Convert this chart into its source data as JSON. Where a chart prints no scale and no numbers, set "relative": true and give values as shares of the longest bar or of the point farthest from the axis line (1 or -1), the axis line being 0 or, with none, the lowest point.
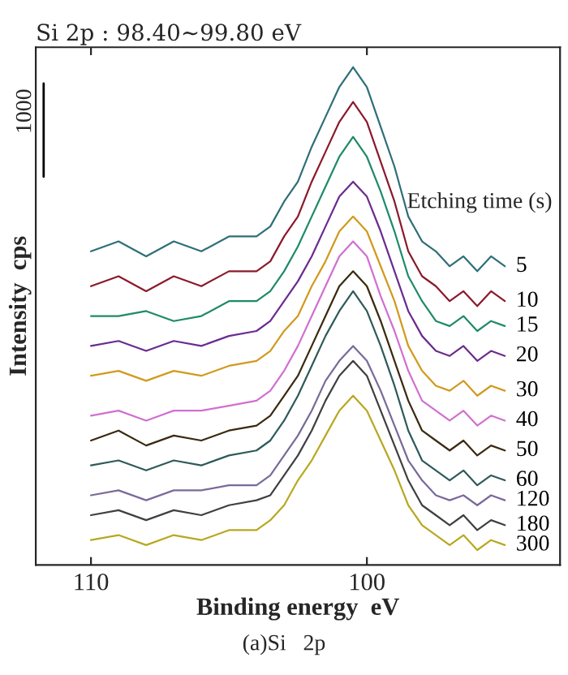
{
  "chart_data": {
    "type": "line",
    "relative": true,
    "title": "Si 2p : 98.40∼99.80 eV",
    "xlabel": "Binding energy  eV",
    "ylabel": "Intensity  cps",
    "legend_title": "Etching time (s)",
    "annotations": [
      "1000",
      "(a)Si   2p"
    ],
    "x": [
      110,
      109,
      108,
      107,
      106,
      105,
      104,
      103.5,
      103,
      102.5,
      102,
      101.5,
      101,
      100.5,
      100,
      99.5,
      99,
      98.5,
      98,
      97.5,
      97,
      96.5,
      96,
      95.5,
      95
    ],
    "xlim": [
      112,
      93
    ],
    "xticks": [
      110,
      100
    ],
    "tick_labels": "x",
    "grid": false,
    "legend": false,
    "series": [
      {
        "name": "5",
        "color": "#2f6f78",
        "values": [
          0.63,
          0.65,
          0.62,
          0.65,
          0.63,
          0.66,
          0.66,
          0.68,
          0.73,
          0.77,
          0.84,
          0.9,
          0.96,
          1.0,
          0.96,
          0.88,
          0.8,
          0.7,
          0.65,
          0.63,
          0.6,
          0.62,
          0.59,
          0.62,
          0.6
        ]
      },
      {
        "name": "10",
        "color": "#8b1a2b",
        "values": [
          0.56,
          0.58,
          0.55,
          0.58,
          0.56,
          0.59,
          0.59,
          0.61,
          0.66,
          0.7,
          0.77,
          0.83,
          0.89,
          0.93,
          0.89,
          0.81,
          0.73,
          0.63,
          0.58,
          0.56,
          0.53,
          0.55,
          0.52,
          0.55,
          0.53
        ]
      },
      {
        "name": "15",
        "color": "#1f8a6a",
        "values": [
          0.5,
          0.5,
          0.51,
          0.49,
          0.5,
          0.53,
          0.53,
          0.55,
          0.59,
          0.64,
          0.7,
          0.76,
          0.82,
          0.86,
          0.82,
          0.75,
          0.67,
          0.58,
          0.53,
          0.49,
          0.48,
          0.5,
          0.47,
          0.49,
          0.48
        ]
      },
      {
        "name": "20",
        "color": "#6a2c8f",
        "values": [
          0.44,
          0.45,
          0.43,
          0.45,
          0.44,
          0.46,
          0.47,
          0.49,
          0.53,
          0.57,
          0.62,
          0.68,
          0.74,
          0.77,
          0.74,
          0.67,
          0.59,
          0.51,
          0.46,
          0.43,
          0.42,
          0.44,
          0.41,
          0.43,
          0.42
        ]
      },
      {
        "name": "30",
        "color": "#d19a1e",
        "values": [
          0.38,
          0.39,
          0.37,
          0.39,
          0.38,
          0.4,
          0.41,
          0.43,
          0.47,
          0.5,
          0.56,
          0.61,
          0.67,
          0.7,
          0.67,
          0.6,
          0.53,
          0.44,
          0.39,
          0.36,
          0.35,
          0.37,
          0.34,
          0.36,
          0.35
        ]
      },
      {
        "name": "40",
        "color": "#d070d0",
        "values": [
          0.3,
          0.31,
          0.29,
          0.31,
          0.31,
          0.32,
          0.33,
          0.35,
          0.39,
          0.44,
          0.5,
          0.56,
          0.62,
          0.65,
          0.62,
          0.54,
          0.47,
          0.39,
          0.33,
          0.31,
          0.29,
          0.31,
          0.28,
          0.3,
          0.29
        ]
      },
      {
        "name": "50",
        "color": "#3a2a10",
        "values": [
          0.25,
          0.27,
          0.24,
          0.26,
          0.25,
          0.27,
          0.28,
          0.3,
          0.34,
          0.38,
          0.44,
          0.5,
          0.56,
          0.59,
          0.56,
          0.49,
          0.41,
          0.33,
          0.27,
          0.25,
          0.23,
          0.25,
          0.22,
          0.24,
          0.23
        ]
      },
      {
        "name": "60",
        "color": "#2f5a5a",
        "values": [
          0.2,
          0.21,
          0.19,
          0.21,
          0.2,
          0.22,
          0.23,
          0.25,
          0.29,
          0.34,
          0.4,
          0.46,
          0.51,
          0.55,
          0.51,
          0.44,
          0.36,
          0.27,
          0.21,
          0.19,
          0.17,
          0.19,
          0.16,
          0.18,
          0.17
        ]
      },
      {
        "name": "120",
        "color": "#7a6a9a",
        "values": [
          0.14,
          0.15,
          0.13,
          0.15,
          0.15,
          0.16,
          0.16,
          0.18,
          0.22,
          0.26,
          0.31,
          0.37,
          0.41,
          0.44,
          0.41,
          0.35,
          0.28,
          0.21,
          0.17,
          0.14,
          0.13,
          0.14,
          0.12,
          0.14,
          0.13
        ]
      },
      {
        "name": "180",
        "color": "#404040",
        "values": [
          0.1,
          0.11,
          0.09,
          0.11,
          0.1,
          0.12,
          0.13,
          0.14,
          0.18,
          0.22,
          0.27,
          0.33,
          0.38,
          0.41,
          0.38,
          0.31,
          0.24,
          0.17,
          0.12,
          0.1,
          0.08,
          0.1,
          0.07,
          0.09,
          0.08
        ]
      },
      {
        "name": "300",
        "color": "#b8a820",
        "values": [
          0.05,
          0.06,
          0.04,
          0.06,
          0.05,
          0.07,
          0.07,
          0.09,
          0.12,
          0.17,
          0.21,
          0.26,
          0.31,
          0.34,
          0.31,
          0.25,
          0.19,
          0.12,
          0.08,
          0.06,
          0.04,
          0.06,
          0.03,
          0.05,
          0.04
        ]
      }
    ]
  }
}
